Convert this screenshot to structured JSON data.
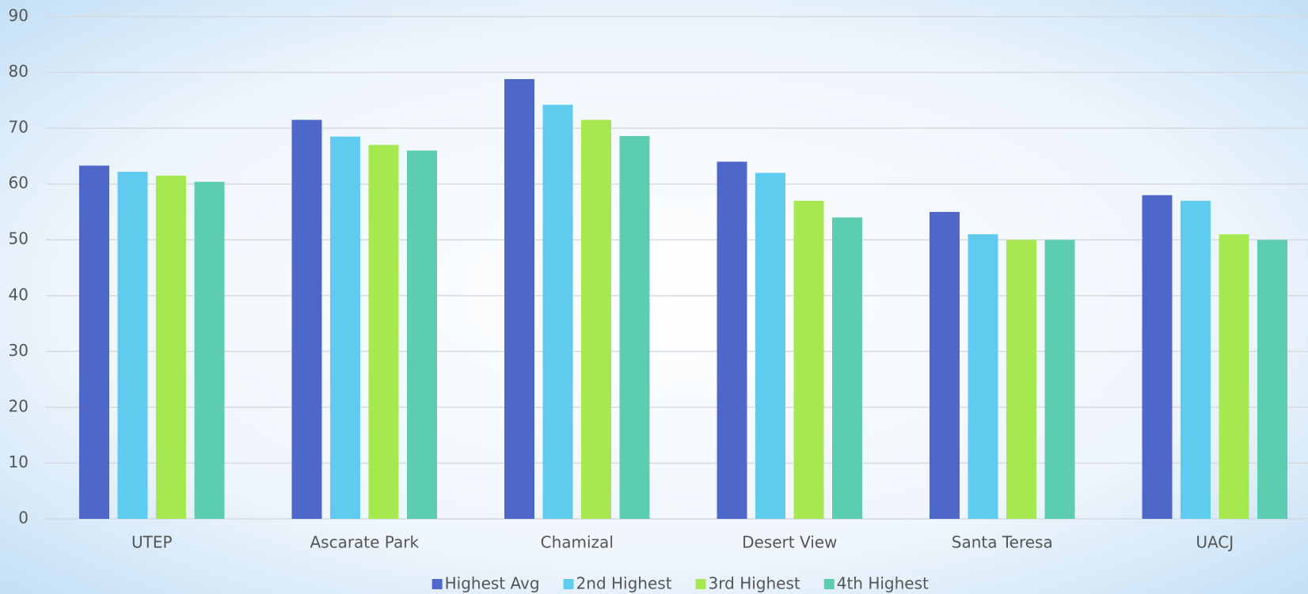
{
  "chart_data": {
    "type": "bar",
    "categories": [
      "UTEP",
      "Ascarate Park",
      "Chamizal",
      "Desert View",
      "Santa Teresa",
      "UACJ"
    ],
    "series": [
      {
        "name": "Highest Avg",
        "color": "#4f67c9",
        "values": [
          63.3,
          71.5,
          78.8,
          64,
          55,
          58
        ]
      },
      {
        "name": "2nd Highest",
        "color": "#5ecbef",
        "values": [
          62.2,
          68.5,
          74.2,
          62,
          51,
          57
        ]
      },
      {
        "name": "3rd Highest",
        "color": "#a6e84f",
        "values": [
          61.5,
          67,
          71.5,
          57,
          50,
          51
        ]
      },
      {
        "name": "4th Highest",
        "color": "#5ccdb1",
        "values": [
          60.4,
          66,
          68.6,
          54,
          50,
          50
        ]
      }
    ],
    "ylim": [
      0,
      90
    ],
    "yticks": [
      0,
      10,
      20,
      30,
      40,
      50,
      60,
      70,
      80,
      90
    ],
    "grid": true,
    "legend": "bottom"
  }
}
